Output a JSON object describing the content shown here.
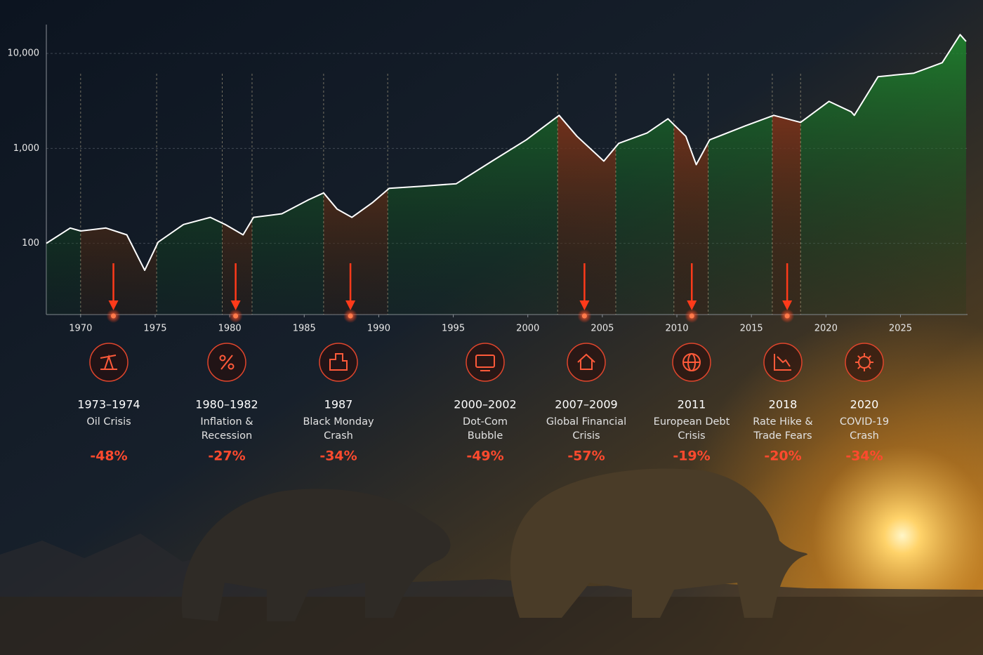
{
  "chart_data": {
    "type": "line",
    "log_scale": true,
    "grid": true,
    "color": "#ffffff",
    "up_color": "#1f8a2e",
    "down_color": "#c0261c",
    "x": [
      1967.7,
      1969.3,
      1970.0,
      1971.7,
      1973.1,
      1974.3,
      1975.2,
      1976.9,
      1978.7,
      1979.7,
      1980.9,
      1981.6,
      1983.5,
      1985.3,
      1986.3,
      1987.2,
      1988.2,
      1989.6,
      1990.7,
      1992.9,
      1995.2,
      1997.6,
      1999.9,
      2002.1,
      2003.3,
      2005.1,
      2006.1,
      2008.0,
      2009.4,
      2010.6,
      2011.3,
      2012.2,
      2014.6,
      2016.5,
      2018.3,
      2020.2,
      2021.7,
      2021.9,
      2023.5,
      2025.9,
      2027.8,
      2029.0,
      2029.4
    ],
    "values": [
      100,
      145,
      135,
      145,
      123,
      52,
      103,
      158,
      188,
      158,
      123,
      188,
      205,
      288,
      340,
      230,
      188,
      270,
      380,
      400,
      425,
      735,
      1230,
      2230,
      1340,
      735,
      1130,
      1455,
      2050,
      1340,
      675,
      1230,
      1730,
      2230,
      1880,
      3130,
      2430,
      2230,
      5700,
      6200,
      8000,
      15800,
      13400
    ],
    "xlim": [
      1967.7,
      2029.5
    ],
    "xticks": [
      1970,
      1975,
      1980,
      1985,
      1990,
      1995,
      2000,
      2005,
      2010,
      2015,
      2020,
      2025
    ],
    "ylim": [
      17.8,
      17000
    ],
    "yticks": [
      100,
      {
        "value": 1000,
        "label": "1,000"
      },
      {
        "value": 10000,
        "label": "10,000"
      }
    ],
    "drawdown_zones": [
      [
        1970.0,
        1975.1
      ],
      [
        1979.5,
        1981.5
      ],
      [
        1986.3,
        1990.6
      ],
      [
        2002.0,
        2005.9
      ],
      [
        2009.8,
        2012.1
      ],
      [
        2016.4,
        2018.3
      ]
    ],
    "events": [
      {
        "period": "1973–1974",
        "name_lines": [
          "Oil Crisis"
        ],
        "value": -48,
        "value_label": "-48%",
        "marker_x": 1972.2
      },
      {
        "period": "1980–1982",
        "name_lines": [
          "Inflation &",
          "Recession"
        ],
        "value": -27,
        "value_label": "-27%",
        "marker_x": 1980.4
      },
      {
        "period": "1987",
        "name_lines": [
          "Black Monday",
          "Crash"
        ],
        "value": -34,
        "value_label": "-34%",
        "marker_x": 1988.1
      },
      {
        "period": "2000–2002",
        "name_lines": [
          "Dot-Com",
          "Bubble"
        ],
        "value": -49,
        "value_label": "-49%"
      },
      {
        "period": "2007–2009",
        "name_lines": [
          "Global Financial",
          "Crisis"
        ],
        "value": -57,
        "value_label": "-57%",
        "marker_x": 2003.8
      },
      {
        "period": "2011",
        "name_lines": [
          "European Debt",
          "Crisis"
        ],
        "value": -19,
        "value_label": "-19%",
        "marker_x": 2011.0
      },
      {
        "period": "2018",
        "name_lines": [
          "Rate Hike &",
          "Trade Fears"
        ],
        "value": -20,
        "value_label": "-20%",
        "marker_x": 2017.4
      },
      {
        "period": "2020",
        "name_lines": [
          "COVID-19",
          "Crash"
        ],
        "value": -34,
        "value_label": "-34%"
      }
    ]
  }
}
